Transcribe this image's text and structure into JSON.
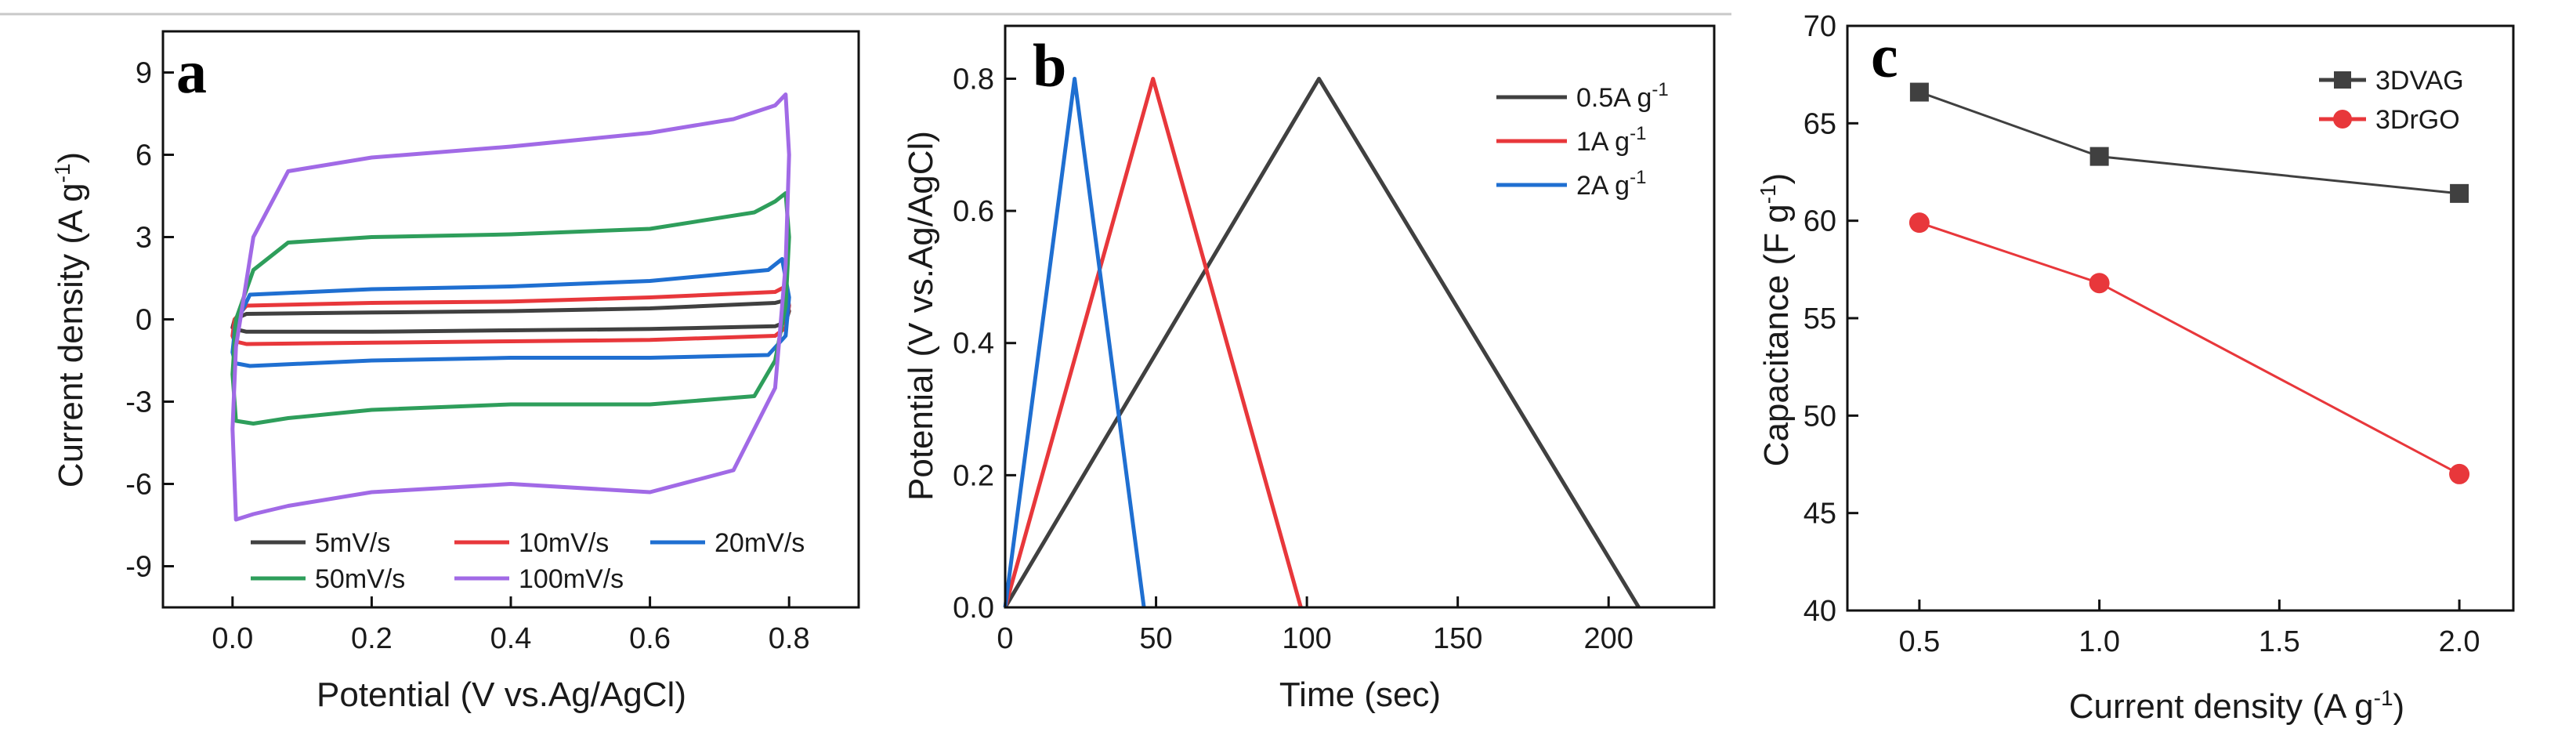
{
  "chart_data": [
    {
      "id": "a",
      "type": "line",
      "panel_label": "a",
      "xlabel": "Potential (V vs.Ag/AgCl)",
      "ylabel": "Current density (A g",
      "ylabel_sup": "-1",
      "ylabel_close": ")",
      "xlim": [
        -0.1,
        0.9
      ],
      "ylim": [
        -10.5,
        10.5
      ],
      "x_ticks": [
        0.0,
        0.2,
        0.4,
        0.6,
        0.8
      ],
      "x_tick_labels": [
        "0.0",
        "0.2",
        "0.4",
        "0.6",
        "0.8"
      ],
      "y_ticks": [
        -9,
        -6,
        -3,
        0,
        3,
        6,
        9
      ],
      "y_tick_labels": [
        "-9",
        "-6",
        "-3",
        "0",
        "3",
        "6",
        "9"
      ],
      "legend_placement": "bottom",
      "series": [
        {
          "name": "5mV/s",
          "color": "#404040",
          "x": [
            0.0,
            0.003,
            0.02,
            0.2,
            0.4,
            0.6,
            0.78,
            0.795,
            0.8,
            0.795,
            0.78,
            0.6,
            0.4,
            0.2,
            0.02,
            0.003,
            0.0
          ],
          "y": [
            -0.3,
            0.0,
            0.2,
            0.25,
            0.3,
            0.4,
            0.6,
            0.7,
            0.3,
            -0.1,
            -0.25,
            -0.35,
            -0.4,
            -0.45,
            -0.45,
            -0.35,
            -0.3
          ]
        },
        {
          "name": "10mV/s",
          "color": "#e8373b",
          "x": [
            0.0,
            0.003,
            0.02,
            0.2,
            0.4,
            0.6,
            0.78,
            0.795,
            0.8,
            0.795,
            0.78,
            0.6,
            0.4,
            0.2,
            0.02,
            0.003,
            0.0
          ],
          "y": [
            -0.6,
            0.0,
            0.5,
            0.6,
            0.65,
            0.8,
            1.0,
            1.2,
            0.5,
            -0.3,
            -0.6,
            -0.75,
            -0.8,
            -0.85,
            -0.9,
            -0.8,
            -0.6
          ]
        },
        {
          "name": "20mV/s",
          "color": "#1f6fd1",
          "x": [
            0.0,
            0.004,
            0.025,
            0.2,
            0.4,
            0.6,
            0.77,
            0.79,
            0.8,
            0.795,
            0.77,
            0.6,
            0.4,
            0.2,
            0.025,
            0.004,
            0.0
          ],
          "y": [
            -1.2,
            -0.2,
            0.9,
            1.1,
            1.2,
            1.4,
            1.8,
            2.2,
            0.8,
            -0.6,
            -1.3,
            -1.4,
            -1.4,
            -1.5,
            -1.7,
            -1.6,
            -1.2
          ]
        },
        {
          "name": "50mV/s",
          "color": "#2e9e5b",
          "x": [
            0.0,
            0.005,
            0.03,
            0.08,
            0.2,
            0.4,
            0.6,
            0.75,
            0.78,
            0.795,
            0.8,
            0.795,
            0.78,
            0.75,
            0.6,
            0.4,
            0.2,
            0.08,
            0.03,
            0.005,
            0.0
          ],
          "y": [
            -2.0,
            0.0,
            1.8,
            2.8,
            3.0,
            3.1,
            3.3,
            3.9,
            4.3,
            4.6,
            3.0,
            0.5,
            -1.5,
            -2.8,
            -3.1,
            -3.1,
            -3.3,
            -3.6,
            -3.8,
            -3.7,
            -2.0
          ]
        },
        {
          "name": "100mV/s",
          "color": "#a16ae6",
          "x": [
            0.0,
            0.005,
            0.03,
            0.08,
            0.2,
            0.4,
            0.6,
            0.72,
            0.78,
            0.795,
            0.8,
            0.795,
            0.78,
            0.72,
            0.6,
            0.4,
            0.2,
            0.08,
            0.03,
            0.005,
            0.0
          ],
          "y": [
            -4.0,
            -1.0,
            3.0,
            5.4,
            5.9,
            6.3,
            6.8,
            7.3,
            7.8,
            8.2,
            6.0,
            2.0,
            -2.5,
            -5.5,
            -6.3,
            -6.0,
            -6.3,
            -6.8,
            -7.1,
            -7.3,
            -4.0
          ]
        }
      ]
    },
    {
      "id": "b",
      "type": "line",
      "panel_label": "b",
      "xlabel": "Time (sec)",
      "ylabel": "Potential (V vs.Ag/AgCl)",
      "xlim": [
        0,
        235
      ],
      "ylim": [
        0,
        0.88
      ],
      "x_ticks": [
        0,
        50,
        100,
        150,
        200
      ],
      "x_tick_labels": [
        "0",
        "50",
        "100",
        "150",
        "200"
      ],
      "y_ticks": [
        0.0,
        0.2,
        0.4,
        0.6,
        0.8
      ],
      "y_tick_labels": [
        "0.0",
        "0.2",
        "0.4",
        "0.6",
        "0.8"
      ],
      "legend_placement": "top-right",
      "series": [
        {
          "name": "0.5A g",
          "sup": "-1",
          "color": "#404040",
          "x": [
            0,
            104,
            210
          ],
          "y": [
            0.0,
            0.8,
            0.0
          ]
        },
        {
          "name": "1A g",
          "sup": "-1",
          "color": "#e8373b",
          "x": [
            0,
            49,
            98
          ],
          "y": [
            0.0,
            0.8,
            0.0
          ]
        },
        {
          "name": "2A g",
          "sup": "-1",
          "color": "#1f6fd1",
          "x": [
            0,
            23,
            46
          ],
          "y": [
            0.0,
            0.8,
            0.0
          ]
        }
      ]
    },
    {
      "id": "c",
      "type": "line",
      "panel_label": "c",
      "xlabel": "Current density (A g",
      "xlabel_sup": "-1",
      "xlabel_close": ")",
      "ylabel": "Capacitance (F g",
      "ylabel_sup": "-1",
      "ylabel_close": ")",
      "xlim": [
        0.3,
        2.15
      ],
      "ylim": [
        40,
        70
      ],
      "x_ticks": [
        0.5,
        1.0,
        1.5,
        2.0
      ],
      "x_tick_labels": [
        "0.5",
        "1.0",
        "1.5",
        "2.0"
      ],
      "y_ticks": [
        40,
        45,
        50,
        55,
        60,
        65,
        70
      ],
      "y_tick_labels": [
        "40",
        "45",
        "50",
        "55",
        "60",
        "65",
        "70"
      ],
      "legend_placement": "top-right",
      "series": [
        {
          "name": "3DVAG",
          "color": "#404040",
          "marker": "square",
          "x": [
            0.5,
            1.0,
            2.0
          ],
          "y": [
            66.6,
            63.3,
            61.4
          ]
        },
        {
          "name": "3DrGO",
          "color": "#e8373b",
          "marker": "circle",
          "x": [
            0.5,
            1.0,
            2.0
          ],
          "y": [
            59.9,
            56.8,
            47.0
          ]
        }
      ]
    }
  ]
}
